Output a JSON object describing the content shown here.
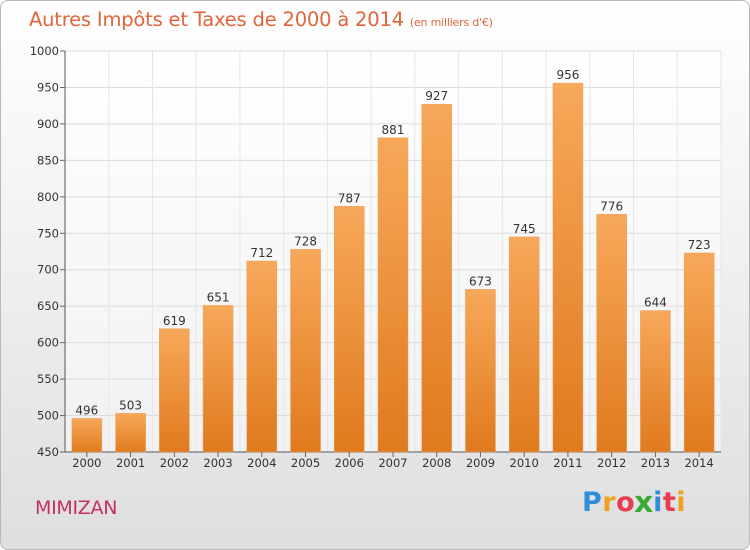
{
  "title": "Autres Impôts et Taxes de 2000 à 2014",
  "subtitle": "(en milliers d'€)",
  "place": "MIMIZAN",
  "brand": {
    "letters": [
      "P",
      "r",
      "o",
      "x",
      "i",
      "t",
      "i"
    ],
    "colors": [
      "#2f8ed8",
      "#f0a020",
      "#e63c50",
      "#3aaa35",
      "#2f8ed8",
      "#e63c50",
      "#f0a020"
    ]
  },
  "colors": {
    "title": "#e0653a",
    "place": "#c2325e",
    "bar_top": "#f7a85a",
    "bar_bottom": "#e07a1e"
  },
  "chart_data": {
    "type": "bar",
    "title": "Autres Impôts et Taxes de 2000 à 2014",
    "subtitle": "(en milliers d'€)",
    "categories": [
      "2000",
      "2001",
      "2002",
      "2003",
      "2004",
      "2005",
      "2006",
      "2007",
      "2008",
      "2009",
      "2010",
      "2011",
      "2012",
      "2013",
      "2014"
    ],
    "values": [
      496,
      503,
      619,
      651,
      712,
      728,
      787,
      881,
      927,
      673,
      745,
      956,
      776,
      644,
      723
    ],
    "ylim": [
      450,
      1000
    ],
    "yticks": [
      450,
      500,
      550,
      600,
      650,
      700,
      750,
      800,
      850,
      900,
      950,
      1000
    ],
    "grid": true,
    "data_labels": true
  }
}
